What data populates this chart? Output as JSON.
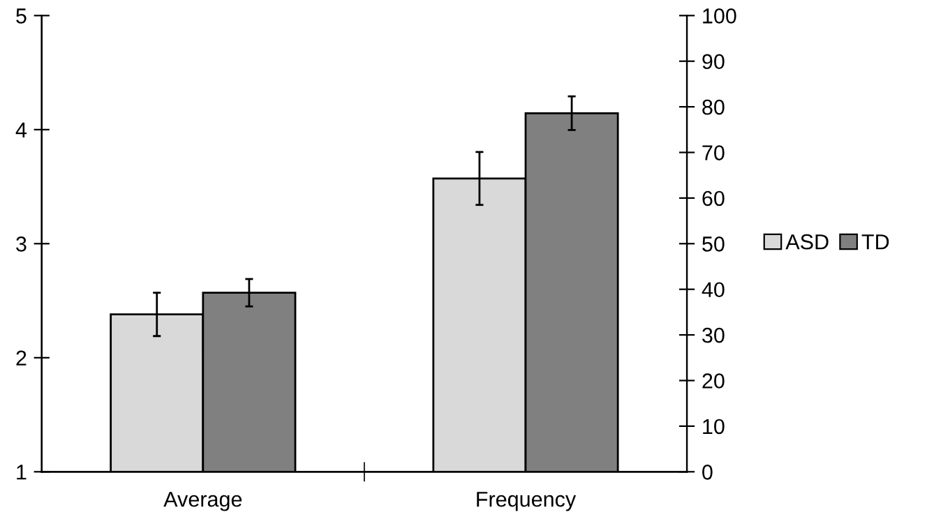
{
  "chart_data": {
    "type": "bar",
    "categories": [
      "Average",
      "Frequency"
    ],
    "series": [
      {
        "name": "ASD",
        "color": "#d9d9d9",
        "values": [
          2.38,
          null
        ],
        "errors": [
          0.19,
          null
        ]
      },
      {
        "name": "TD",
        "color": "#808080",
        "values": [
          2.57,
          null
        ],
        "errors": [
          0.12,
          null
        ]
      },
      {
        "color": "#d9d9d9",
        "axis": "y2",
        "values": [
          null,
          64.3
        ],
        "errors": [
          null,
          5.8
        ]
      },
      {
        "color": "#808080",
        "axis": "y2",
        "values": [
          null,
          78.6
        ],
        "errors": [
          null,
          3.7
        ]
      }
    ],
    "ylim": [
      1,
      5
    ],
    "yticks": [
      1,
      2,
      3,
      4,
      5
    ],
    "y2lim": [
      0,
      100
    ],
    "y2ticks": [
      0,
      10,
      20,
      30,
      40,
      50,
      60,
      70,
      80,
      90,
      100
    ],
    "grid": false,
    "legend": "right"
  }
}
